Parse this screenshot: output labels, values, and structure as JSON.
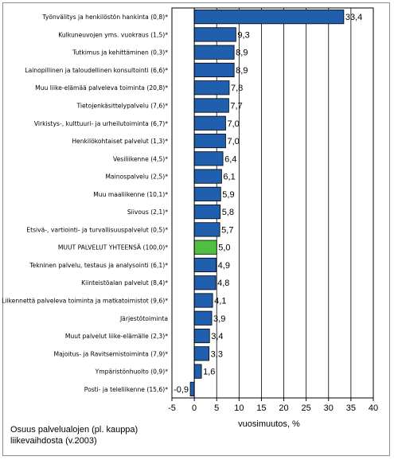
{
  "chart_data": {
    "type": "bar",
    "orientation": "horizontal",
    "categories": [
      "Työnvälitys ja henkilöstön hankinta (0,8)*",
      "Kulkuneuvojen yms. vuokraus (1,5)*",
      "Tutkimus ja kehittäminen (0,3)*",
      "Lainopillinen ja taloudellinen konsultointi (6,6)*",
      "Muu liike-elämää palveleva toiminta (20,8)*",
      "Tietojenkäsittelypalvelu (7,6)*",
      "Virkistys-, kulttuuri- ja urheilutoiminta (6,7)*",
      "Henkilökohtaiset palvelut (1,3)*",
      "Vesiliikenne (4,5)*",
      "Mainospalvelu (2,5)*",
      "Muu maaliikenne (10,1)*",
      "Siivous (2,1)*",
      "Etsivä-, vartiointi- ja turvallisuuspalvelut (0,5)*",
      "MUUT PALVELUT YHTEENSÄ (100,0)*",
      "Tekninen palvelu, testaus ja analysointi (6,1)*",
      "Kiinteistöalan palvelut (8,4)*",
      "Liikennettä palveleva toiminta ja matkatoimistot (9,6)*",
      "Järjestötoiminta",
      "Muut palvelut liike-elämälle (2,3)*",
      "Majoitus- ja Ravitsemistoiminta (7,9)*",
      "Ympäristönhuolto (0,9)*",
      "Posti- ja teleliikenne (15,6)*"
    ],
    "values": [
      33.4,
      9.3,
      8.9,
      8.9,
      7.8,
      7.7,
      7.0,
      7.0,
      6.4,
      6.1,
      5.9,
      5.8,
      5.7,
      5.0,
      4.9,
      4.8,
      4.1,
      3.9,
      3.4,
      3.3,
      1.6,
      -0.9
    ],
    "value_labels": [
      "33,4",
      "9,3",
      "8,9",
      "8,9",
      "7,8",
      "7,7",
      "7,0",
      "7,0",
      "6,4",
      "6,1",
      "5,9",
      "5,8",
      "5,7",
      "5,0",
      "4,9",
      "4,8",
      "4,1",
      "3,9",
      "3,4",
      "3,3",
      "1,6",
      "-0,9"
    ],
    "highlight_index": 13,
    "bar_color": "#1f5fae",
    "highlight_color": "#4fbf3f",
    "xlim": [
      -5,
      40
    ],
    "xticks": [
      -5,
      0,
      5,
      10,
      15,
      20,
      25,
      30,
      35,
      40
    ],
    "xlabel": "vuosimuutos, %",
    "title": "",
    "grid": true,
    "footnote_lines": [
      "Osuus palvelualojen (pl. kauppa)",
      "liikevaihdosta (v.2003)"
    ]
  }
}
